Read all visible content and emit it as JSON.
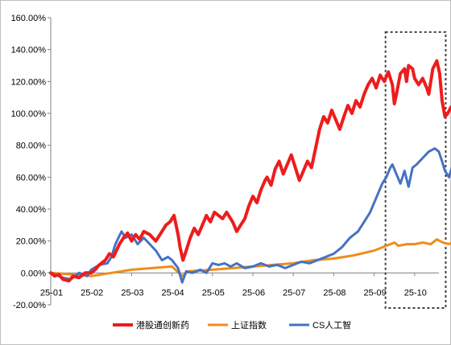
{
  "chart_data": {
    "type": "line",
    "title": "",
    "xlabel": "",
    "ylabel": "",
    "ylim": [
      -20,
      160
    ],
    "y_ticks": [
      "160.00%",
      "140.00%",
      "120.00%",
      "100.00%",
      "80.00%",
      "60.00%",
      "40.00%",
      "20.00%",
      "0.00%",
      "-20.00%"
    ],
    "y_tick_values": [
      160,
      140,
      120,
      100,
      80,
      60,
      40,
      20,
      0,
      -20
    ],
    "x_ticks": [
      "25-01",
      "25-02",
      "25-03",
      "25-04",
      "25-05",
      "25-06",
      "25-07",
      "25-08",
      "25-09",
      "25-10"
    ],
    "x_range": [
      0,
      9.75
    ],
    "grid": false,
    "legend_position": "bottom",
    "highlight_box": {
      "x": [
        8.3,
        9.75
      ],
      "y": [
        -20,
        150
      ]
    },
    "series": [
      {
        "name": "港股通创新药",
        "color": "#ee1c1c",
        "points": [
          [
            0,
            0
          ],
          [
            0.1,
            -2
          ],
          [
            0.2,
            -1
          ],
          [
            0.3,
            -4
          ],
          [
            0.45,
            -5
          ],
          [
            0.55,
            -2
          ],
          [
            0.7,
            -3
          ],
          [
            0.85,
            0
          ],
          [
            1.0,
            0
          ],
          [
            1.1,
            2
          ],
          [
            1.2,
            5
          ],
          [
            1.35,
            8
          ],
          [
            1.45,
            12
          ],
          [
            1.55,
            10
          ],
          [
            1.7,
            18
          ],
          [
            1.8,
            22
          ],
          [
            1.9,
            25
          ],
          [
            2.0,
            20
          ],
          [
            2.1,
            24
          ],
          [
            2.2,
            21
          ],
          [
            2.3,
            26
          ],
          [
            2.45,
            24
          ],
          [
            2.6,
            20
          ],
          [
            2.75,
            26
          ],
          [
            2.85,
            30
          ],
          [
            2.95,
            32
          ],
          [
            3.05,
            36
          ],
          [
            3.15,
            24
          ],
          [
            3.2,
            16
          ],
          [
            3.27,
            8
          ],
          [
            3.35,
            14
          ],
          [
            3.45,
            22
          ],
          [
            3.55,
            28
          ],
          [
            3.65,
            24
          ],
          [
            3.75,
            30
          ],
          [
            3.85,
            36
          ],
          [
            3.95,
            32
          ],
          [
            4.05,
            38
          ],
          [
            4.15,
            36
          ],
          [
            4.25,
            34
          ],
          [
            4.35,
            38
          ],
          [
            4.5,
            32
          ],
          [
            4.6,
            26
          ],
          [
            4.7,
            30
          ],
          [
            4.8,
            34
          ],
          [
            4.9,
            42
          ],
          [
            5.0,
            48
          ],
          [
            5.1,
            44
          ],
          [
            5.2,
            52
          ],
          [
            5.3,
            58
          ],
          [
            5.35,
            60
          ],
          [
            5.45,
            55
          ],
          [
            5.55,
            65
          ],
          [
            5.65,
            70
          ],
          [
            5.75,
            62
          ],
          [
            5.85,
            68
          ],
          [
            5.95,
            74
          ],
          [
            6.05,
            66
          ],
          [
            6.15,
            58
          ],
          [
            6.25,
            64
          ],
          [
            6.35,
            70
          ],
          [
            6.45,
            66
          ],
          [
            6.55,
            78
          ],
          [
            6.65,
            90
          ],
          [
            6.75,
            98
          ],
          [
            6.85,
            94
          ],
          [
            6.95,
            102
          ],
          [
            7.05,
            96
          ],
          [
            7.15,
            90
          ],
          [
            7.25,
            98
          ],
          [
            7.35,
            105
          ],
          [
            7.45,
            100
          ],
          [
            7.55,
            108
          ],
          [
            7.65,
            104
          ],
          [
            7.75,
            112
          ],
          [
            7.85,
            118
          ],
          [
            7.95,
            122
          ],
          [
            8.05,
            116
          ],
          [
            8.15,
            124
          ],
          [
            8.25,
            120
          ],
          [
            8.35,
            126
          ],
          [
            8.45,
            118
          ],
          [
            8.5,
            106
          ],
          [
            8.55,
            112
          ],
          [
            8.65,
            125
          ],
          [
            8.75,
            128
          ],
          [
            8.8,
            120
          ],
          [
            8.85,
            130
          ],
          [
            8.95,
            128
          ],
          [
            9.0,
            122
          ],
          [
            9.1,
            118
          ],
          [
            9.2,
            122
          ],
          [
            9.3,
            116
          ],
          [
            9.35,
            112
          ],
          [
            9.45,
            128
          ],
          [
            9.55,
            133
          ],
          [
            9.62,
            125
          ],
          [
            9.68,
            108
          ],
          [
            9.75,
            98
          ],
          [
            9.82,
            100
          ],
          [
            9.9,
            104
          ],
          [
            9.98,
            98
          ]
        ]
      },
      {
        "name": "上证指数",
        "color": "#f08c1c",
        "points": [
          [
            0,
            0
          ],
          [
            0.5,
            -1
          ],
          [
            1.0,
            -2
          ],
          [
            1.5,
            0
          ],
          [
            2.0,
            2
          ],
          [
            2.5,
            3
          ],
          [
            3.0,
            4
          ],
          [
            3.25,
            -2
          ],
          [
            3.4,
            1
          ],
          [
            4.0,
            2
          ],
          [
            4.5,
            3
          ],
          [
            5.0,
            4
          ],
          [
            5.5,
            5
          ],
          [
            6.0,
            6
          ],
          [
            6.5,
            8
          ],
          [
            7.0,
            9
          ],
          [
            7.5,
            11
          ],
          [
            8.0,
            14
          ],
          [
            8.3,
            17
          ],
          [
            8.5,
            19
          ],
          [
            8.6,
            17
          ],
          [
            8.8,
            18
          ],
          [
            9.0,
            18
          ],
          [
            9.2,
            19
          ],
          [
            9.4,
            18
          ],
          [
            9.55,
            21
          ],
          [
            9.7,
            19
          ],
          [
            9.85,
            18
          ],
          [
            9.98,
            20
          ]
        ]
      },
      {
        "name": "CS人工智",
        "color": "#4472c4",
        "points": [
          [
            0,
            0
          ],
          [
            0.3,
            -3
          ],
          [
            0.5,
            -4
          ],
          [
            0.7,
            0
          ],
          [
            0.9,
            -2
          ],
          [
            1.0,
            2
          ],
          [
            1.2,
            5
          ],
          [
            1.4,
            6
          ],
          [
            1.5,
            10
          ],
          [
            1.6,
            18
          ],
          [
            1.75,
            26
          ],
          [
            1.85,
            22
          ],
          [
            2.0,
            24
          ],
          [
            2.15,
            18
          ],
          [
            2.3,
            22
          ],
          [
            2.45,
            18
          ],
          [
            2.6,
            14
          ],
          [
            2.75,
            8
          ],
          [
            2.9,
            10
          ],
          [
            3.0,
            8
          ],
          [
            3.15,
            3
          ],
          [
            3.25,
            -6
          ],
          [
            3.35,
            1
          ],
          [
            3.5,
            0
          ],
          [
            3.7,
            2
          ],
          [
            3.85,
            0
          ],
          [
            4.0,
            6
          ],
          [
            4.15,
            5
          ],
          [
            4.3,
            6
          ],
          [
            4.45,
            4
          ],
          [
            4.6,
            6
          ],
          [
            4.8,
            3
          ],
          [
            5.0,
            4
          ],
          [
            5.2,
            6
          ],
          [
            5.4,
            4
          ],
          [
            5.6,
            5
          ],
          [
            5.8,
            3
          ],
          [
            6.0,
            5
          ],
          [
            6.2,
            7
          ],
          [
            6.4,
            6
          ],
          [
            6.6,
            8
          ],
          [
            6.8,
            10
          ],
          [
            7.0,
            12
          ],
          [
            7.2,
            16
          ],
          [
            7.4,
            22
          ],
          [
            7.6,
            26
          ],
          [
            7.75,
            32
          ],
          [
            7.9,
            38
          ],
          [
            8.0,
            44
          ],
          [
            8.1,
            50
          ],
          [
            8.2,
            56
          ],
          [
            8.3,
            60
          ],
          [
            8.4,
            66
          ],
          [
            8.45,
            68
          ],
          [
            8.55,
            62
          ],
          [
            8.65,
            56
          ],
          [
            8.75,
            64
          ],
          [
            8.85,
            54
          ],
          [
            8.95,
            66
          ],
          [
            9.05,
            68
          ],
          [
            9.2,
            72
          ],
          [
            9.35,
            76
          ],
          [
            9.5,
            78
          ],
          [
            9.6,
            76
          ],
          [
            9.68,
            70
          ],
          [
            9.75,
            64
          ],
          [
            9.85,
            60
          ],
          [
            9.92,
            66
          ],
          [
            9.98,
            68
          ]
        ]
      }
    ]
  }
}
